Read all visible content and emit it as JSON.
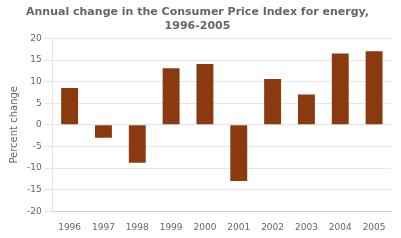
{
  "chart_data": {
    "type": "bar",
    "title": [
      "Annual change in the Consumer Price Index for energy,",
      "1996-2005"
    ],
    "ylabel": "Percent change",
    "categories": [
      "1996",
      "1997",
      "1998",
      "1999",
      "2000",
      "2001",
      "2002",
      "2003",
      "2004",
      "2005"
    ],
    "values": [
      8.5,
      -3.0,
      -8.8,
      13.1,
      14.1,
      -13.0,
      10.6,
      7.0,
      16.5,
      17.0
    ],
    "color": "#8B3A0F",
    "ylim": [
      -20,
      20
    ],
    "yticks": [
      -20,
      -15,
      -10,
      -5,
      0,
      5,
      10,
      15,
      20
    ],
    "grid": true
  }
}
